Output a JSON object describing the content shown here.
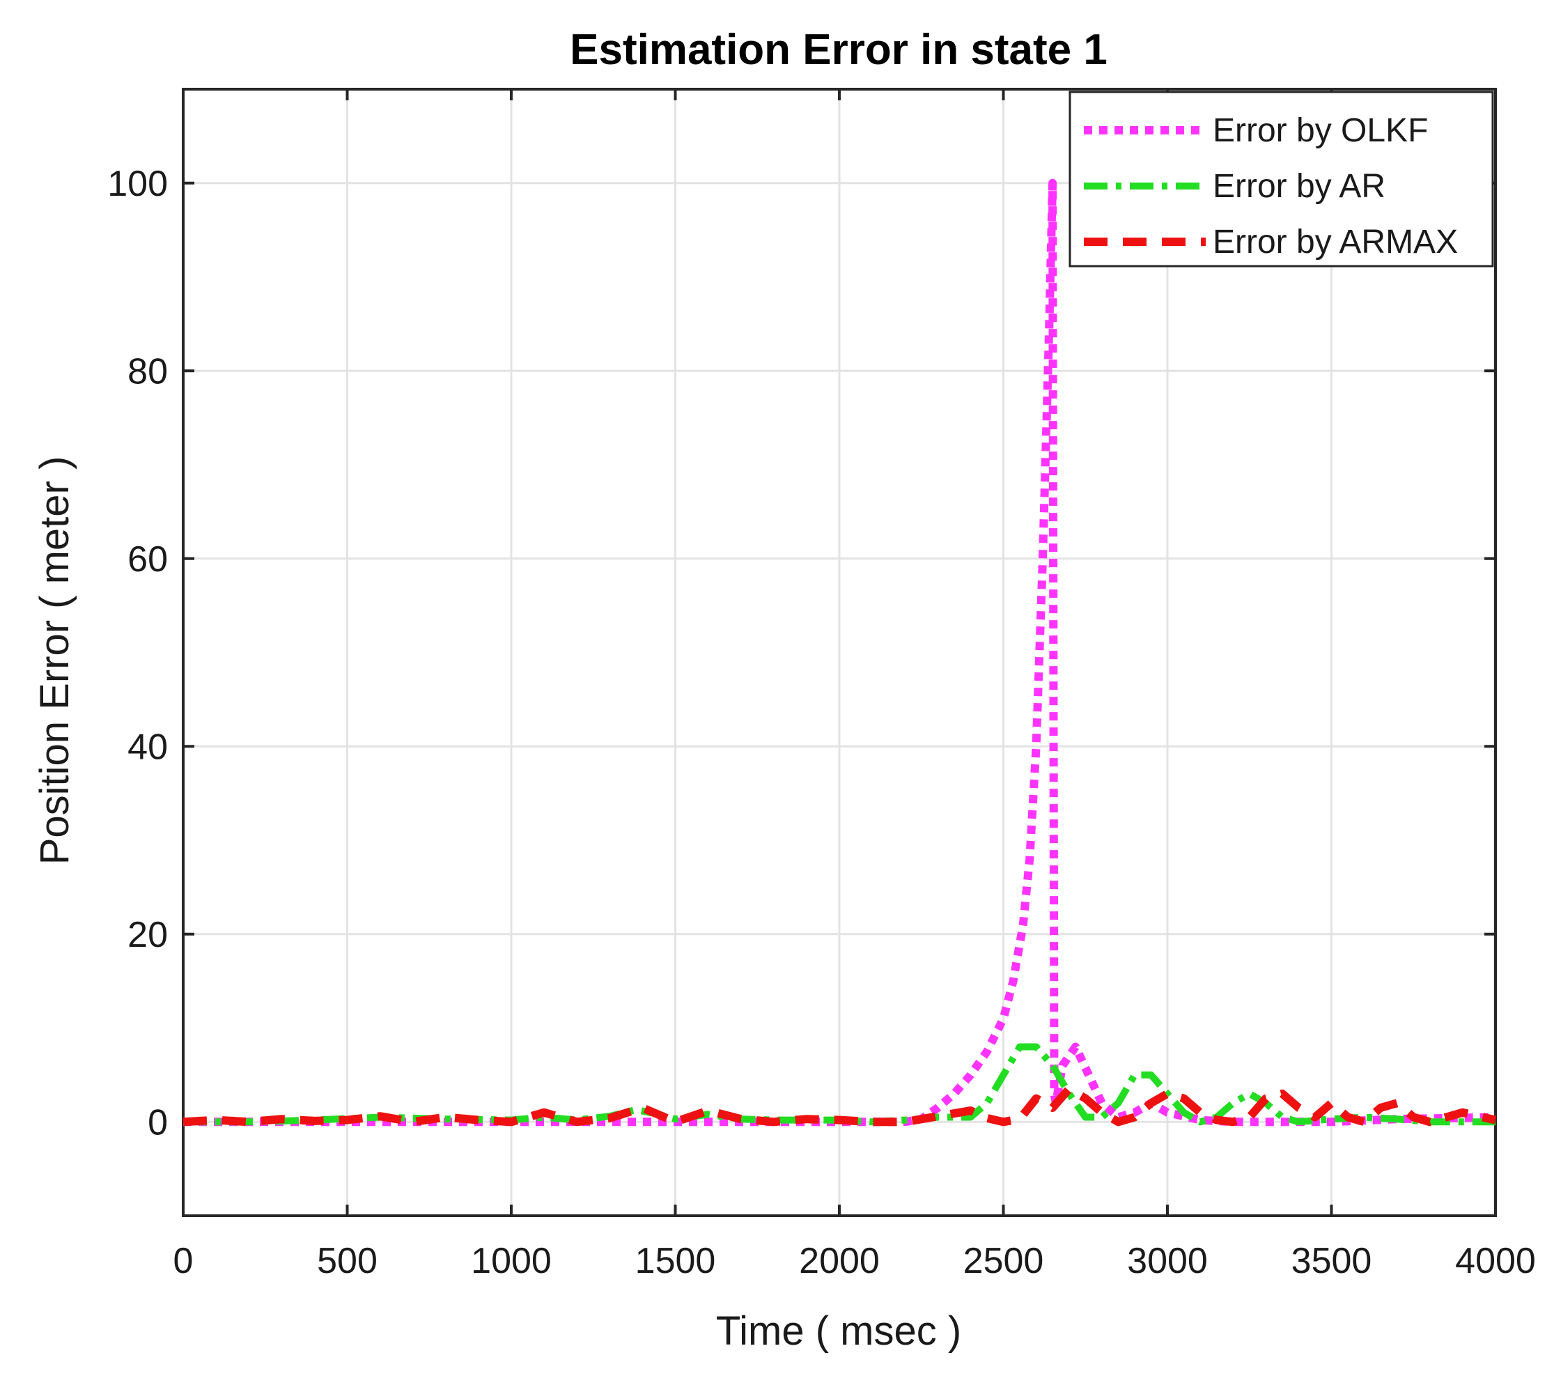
{
  "chart_data": {
    "type": "line",
    "title": "Estimation Error in state 1",
    "xlabel": "Time ( msec )",
    "ylabel": "Position Error ( meter )",
    "xlim": [
      0,
      4000
    ],
    "ylim": [
      -10,
      110
    ],
    "xticks": [
      0,
      500,
      1000,
      1500,
      2000,
      2500,
      3000,
      3500,
      4000
    ],
    "yticks": [
      0,
      20,
      40,
      60,
      80,
      100
    ],
    "grid": true,
    "legend_position": "top-right",
    "series": [
      {
        "name": "Error by OLKF",
        "color": "#ff33ff",
        "style": "dotted",
        "x": [
          0,
          200,
          400,
          600,
          800,
          1000,
          1200,
          1400,
          1600,
          1800,
          2000,
          2200,
          2250,
          2300,
          2350,
          2400,
          2450,
          2500,
          2530,
          2560,
          2580,
          2600,
          2620,
          2640,
          2650,
          2655,
          2660,
          2680,
          2720,
          2760,
          2800,
          2850,
          2900,
          2950,
          3000,
          3100,
          3200,
          3300,
          3500,
          3700,
          4000
        ],
        "y": [
          0,
          0,
          0,
          0,
          0,
          0,
          0,
          0,
          0,
          0,
          0,
          0,
          0.3,
          1.5,
          3,
          5,
          7.5,
          11,
          15,
          21,
          28,
          40,
          60,
          85,
          100,
          3,
          2,
          6,
          8,
          5,
          2,
          0.5,
          1,
          2,
          1,
          0.2,
          0,
          0,
          0,
          0.3,
          0.5
        ]
      },
      {
        "name": "Error by AR",
        "color": "#22dd22",
        "style": "dashdot",
        "x": [
          0,
          200,
          400,
          600,
          800,
          1000,
          1100,
          1200,
          1300,
          1380,
          1450,
          1500,
          1600,
          1700,
          1800,
          2000,
          2100,
          2200,
          2300,
          2400,
          2450,
          2500,
          2550,
          2600,
          2650,
          2700,
          2750,
          2800,
          2850,
          2900,
          2950,
          3000,
          3050,
          3100,
          3150,
          3200,
          3250,
          3300,
          3350,
          3400,
          3500,
          3600,
          3700,
          3800,
          4000
        ],
        "y": [
          0,
          0,
          0.2,
          0.5,
          0.3,
          0.2,
          0.5,
          0.2,
          0.6,
          1.3,
          0.8,
          0.3,
          0.8,
          0.3,
          0.2,
          0.2,
          0,
          0.2,
          0.5,
          0.5,
          2,
          5,
          8,
          8,
          6,
          3,
          0.5,
          0.5,
          2,
          5,
          5,
          3,
          1,
          0,
          0.5,
          2,
          3,
          2,
          0.5,
          0,
          0.3,
          0.5,
          0.3,
          0,
          0
        ]
      },
      {
        "name": "Error by ARMAX",
        "color": "#ee1111",
        "style": "dashed",
        "x": [
          0,
          100,
          200,
          300,
          400,
          500,
          600,
          700,
          800,
          900,
          1000,
          1100,
          1200,
          1300,
          1400,
          1500,
          1600,
          1700,
          1800,
          1900,
          2000,
          2100,
          2200,
          2300,
          2400,
          2450,
          2500,
          2550,
          2600,
          2650,
          2700,
          2750,
          2800,
          2850,
          2900,
          2950,
          3000,
          3050,
          3100,
          3150,
          3200,
          3250,
          3300,
          3350,
          3400,
          3450,
          3500,
          3550,
          3600,
          3650,
          3700,
          3750,
          3800,
          3900,
          4000
        ],
        "y": [
          0,
          0.2,
          0,
          0.3,
          0.1,
          0.2,
          0.6,
          0,
          0.5,
          0.2,
          0,
          1,
          0,
          0.4,
          1.5,
          0,
          1.2,
          0.3,
          0,
          0.3,
          0.2,
          0,
          0,
          0.6,
          1.2,
          0.4,
          0,
          0.3,
          2.5,
          1.5,
          3.5,
          2.5,
          1,
          0,
          0.5,
          2,
          3,
          2.5,
          1,
          0.2,
          0,
          0.5,
          2.5,
          3,
          1.5,
          0.5,
          2,
          0.5,
          0,
          1.5,
          2,
          0.5,
          0,
          1,
          0.2
        ]
      }
    ]
  }
}
